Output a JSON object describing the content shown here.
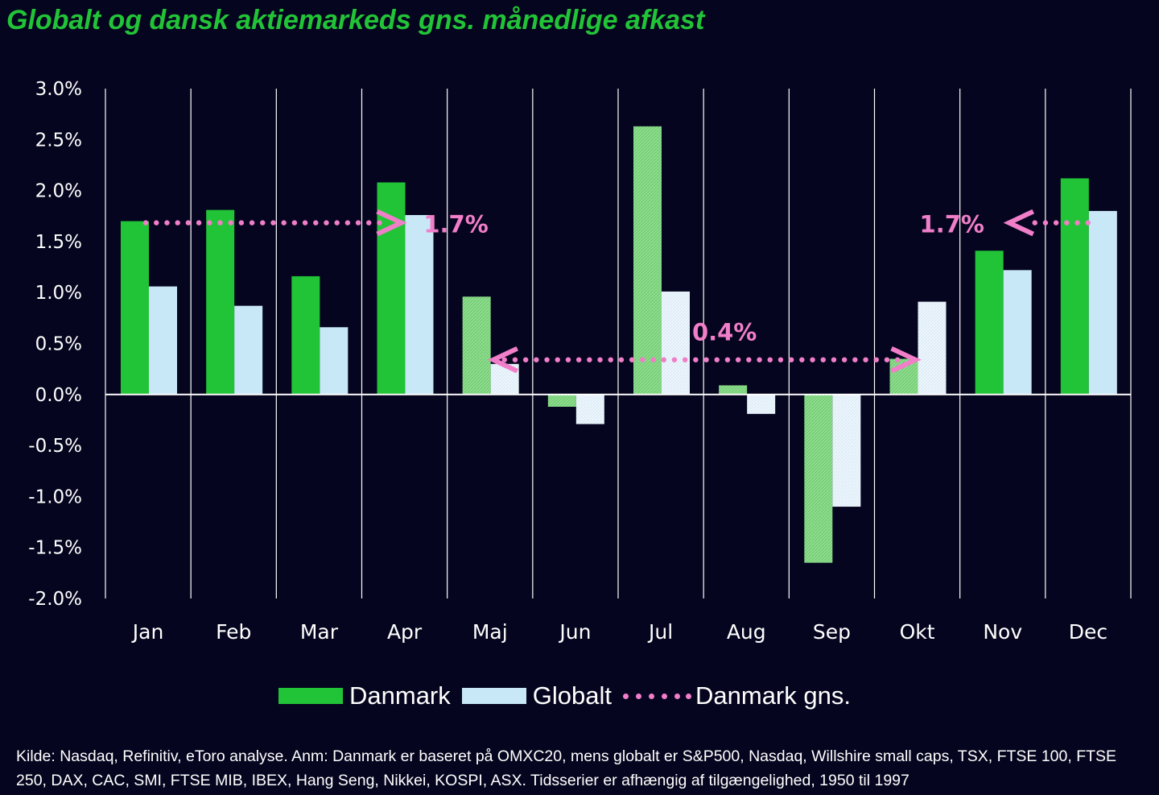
{
  "title": "Globalt og dansk aktiemarkeds gns. månedlige afkast",
  "chart_data": {
    "type": "bar",
    "categories": [
      "Jan",
      "Feb",
      "Mar",
      "Apr",
      "Maj",
      "Jun",
      "Jul",
      "Aug",
      "Sep",
      "Okt",
      "Nov",
      "Dec"
    ],
    "series": [
      {
        "name": "Danmark",
        "values": [
          1.7,
          1.81,
          1.16,
          2.08,
          0.96,
          -0.12,
          2.63,
          0.09,
          -1.65,
          0.35,
          1.41,
          2.12
        ],
        "color": "#22c437",
        "faded_color": "#8fdc8f"
      },
      {
        "name": "Globalt",
        "values": [
          1.06,
          0.87,
          0.66,
          1.76,
          0.3,
          -0.29,
          1.01,
          -0.19,
          -1.1,
          0.91,
          1.22,
          1.8
        ],
        "color": "#c8e8f8",
        "faded_color": "#eef6fc"
      }
    ],
    "faded_months": [
      "Maj",
      "Jun",
      "Jul",
      "Aug",
      "Sep",
      "Okt"
    ],
    "averages": [
      {
        "name": "Danmark gns.",
        "value": 1.7,
        "from": "Jan",
        "to": "Apr",
        "label": "1.7%"
      },
      {
        "name": "Danmark gns.",
        "value": 0.38,
        "from": "Maj",
        "to": "Okt",
        "label": "0.4%"
      },
      {
        "name": "Danmark gns.",
        "value": 1.7,
        "from": "Nov",
        "to": "Dec",
        "label": "1.7%"
      }
    ],
    "average_color": "#f07ec8",
    "ylim": [
      -2.0,
      3.0
    ],
    "yticks": [
      3.0,
      2.5,
      2.0,
      1.5,
      1.0,
      0.5,
      0.0,
      -0.5,
      -1.0,
      -1.5,
      -2.0
    ],
    "ytick_labels": [
      "3.0%",
      "2.5%",
      "2.0%",
      "1.5%",
      "1.0%",
      "0.5%",
      "0.0%",
      "-0.5%",
      "-1.0%",
      "-1.5%",
      "-2.0%"
    ],
    "xlabel": "",
    "ylabel": ""
  },
  "legend": {
    "danmark": "Danmark",
    "globalt": "Globalt",
    "danmark_gns": "Danmark gns."
  },
  "footnote": "Kilde: Nasdaq, Refinitiv, eToro analyse. Anm: Danmark er baseret på OMXC20, mens globalt er S&P500, Nasdaq, Willshire small caps, TSX, FTSE 100, FTSE 250, DAX, CAC, SMI, FTSE MIB, IBEX, Hang Seng, Nikkei, KOSPI, ASX. Tidsserier er afhængig af tilgængelighed, 1950 til 1997"
}
